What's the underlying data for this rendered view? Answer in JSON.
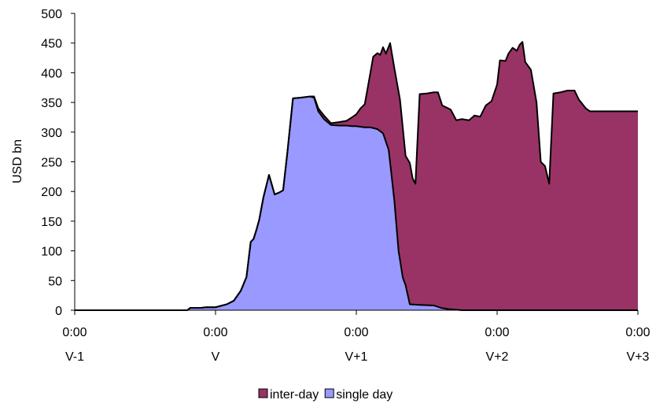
{
  "chart_data": {
    "type": "area",
    "stacked": true,
    "title": "",
    "xlabel": "",
    "ylabel": "USD bn",
    "ylim": [
      0,
      500
    ],
    "yticks": [
      0,
      50,
      100,
      150,
      200,
      250,
      300,
      350,
      400,
      450,
      500
    ],
    "xlim": [
      0,
      4
    ],
    "xticks": [
      {
        "x": 0,
        "time": "0:00",
        "day": "V-1"
      },
      {
        "x": 1,
        "time": "0:00",
        "day": "V"
      },
      {
        "x": 2,
        "time": "0:00",
        "day": "V+1"
      },
      {
        "x": 3,
        "time": "0:00",
        "day": "V+2"
      },
      {
        "x": 4,
        "time": "0:00",
        "day": "V+3"
      }
    ],
    "legend_position": "bottom-center",
    "grid": false,
    "series": [
      {
        "name": "inter-day",
        "color": "#993366",
        "note": "values are cumulative top of stacked area (inter-day + single day)",
        "points": [
          [
            0.0,
            0
          ],
          [
            0.8,
            0
          ],
          [
            0.82,
            4
          ],
          [
            0.9,
            4
          ],
          [
            0.93,
            5
          ],
          [
            1.0,
            5
          ],
          [
            1.08,
            10
          ],
          [
            1.13,
            16
          ],
          [
            1.18,
            33
          ],
          [
            1.22,
            56
          ],
          [
            1.25,
            115
          ],
          [
            1.27,
            120
          ],
          [
            1.29,
            135
          ],
          [
            1.31,
            152
          ],
          [
            1.34,
            190
          ],
          [
            1.38,
            228
          ],
          [
            1.42,
            195
          ],
          [
            1.45,
            198
          ],
          [
            1.48,
            202
          ],
          [
            1.51,
            265
          ],
          [
            1.55,
            357
          ],
          [
            1.6,
            358
          ],
          [
            1.67,
            360
          ],
          [
            1.7,
            360
          ],
          [
            1.73,
            340
          ],
          [
            1.77,
            328
          ],
          [
            1.82,
            315
          ],
          [
            1.88,
            317
          ],
          [
            1.93,
            319
          ],
          [
            1.97,
            325
          ],
          [
            2.0,
            330
          ],
          [
            2.03,
            340
          ],
          [
            2.06,
            347
          ],
          [
            2.1,
            400
          ],
          [
            2.12,
            427
          ],
          [
            2.15,
            433
          ],
          [
            2.17,
            430
          ],
          [
            2.19,
            443
          ],
          [
            2.21,
            432
          ],
          [
            2.24,
            450
          ],
          [
            2.27,
            408
          ],
          [
            2.31,
            355
          ],
          [
            2.35,
            260
          ],
          [
            2.38,
            248
          ],
          [
            2.4,
            222
          ],
          [
            2.42,
            213
          ],
          [
            2.45,
            364
          ],
          [
            2.5,
            365
          ],
          [
            2.55,
            367
          ],
          [
            2.58,
            367
          ],
          [
            2.61,
            345
          ],
          [
            2.67,
            338
          ],
          [
            2.71,
            320
          ],
          [
            2.75,
            322
          ],
          [
            2.8,
            320
          ],
          [
            2.84,
            328
          ],
          [
            2.88,
            326
          ],
          [
            2.92,
            345
          ],
          [
            2.96,
            352
          ],
          [
            3.0,
            380
          ],
          [
            3.02,
            421
          ],
          [
            3.06,
            420
          ],
          [
            3.08,
            432
          ],
          [
            3.11,
            442
          ],
          [
            3.14,
            437
          ],
          [
            3.16,
            447
          ],
          [
            3.18,
            452
          ],
          [
            3.2,
            418
          ],
          [
            3.24,
            405
          ],
          [
            3.28,
            350
          ],
          [
            3.31,
            250
          ],
          [
            3.34,
            243
          ],
          [
            3.37,
            213
          ],
          [
            3.4,
            365
          ],
          [
            3.45,
            367
          ],
          [
            3.5,
            370
          ],
          [
            3.55,
            370
          ],
          [
            3.58,
            355
          ],
          [
            3.63,
            340
          ],
          [
            3.66,
            335
          ],
          [
            4.0,
            335
          ]
        ]
      },
      {
        "name": "single day",
        "color": "#9999FF",
        "points": [
          [
            0.0,
            0
          ],
          [
            0.8,
            0
          ],
          [
            0.82,
            4
          ],
          [
            0.9,
            4
          ],
          [
            0.93,
            5
          ],
          [
            1.0,
            5
          ],
          [
            1.08,
            10
          ],
          [
            1.13,
            16
          ],
          [
            1.18,
            33
          ],
          [
            1.22,
            56
          ],
          [
            1.25,
            115
          ],
          [
            1.27,
            120
          ],
          [
            1.29,
            135
          ],
          [
            1.31,
            152
          ],
          [
            1.34,
            190
          ],
          [
            1.38,
            228
          ],
          [
            1.42,
            195
          ],
          [
            1.45,
            198
          ],
          [
            1.48,
            202
          ],
          [
            1.51,
            265
          ],
          [
            1.55,
            357
          ],
          [
            1.6,
            358
          ],
          [
            1.67,
            360
          ],
          [
            1.7,
            358
          ],
          [
            1.73,
            335
          ],
          [
            1.77,
            322
          ],
          [
            1.82,
            312
          ],
          [
            1.88,
            311
          ],
          [
            1.93,
            311
          ],
          [
            1.97,
            310
          ],
          [
            2.0,
            310
          ],
          [
            2.03,
            309
          ],
          [
            2.06,
            308
          ],
          [
            2.1,
            308
          ],
          [
            2.15,
            305
          ],
          [
            2.19,
            298
          ],
          [
            2.23,
            270
          ],
          [
            2.27,
            185
          ],
          [
            2.3,
            100
          ],
          [
            2.33,
            55
          ],
          [
            2.35,
            42
          ],
          [
            2.38,
            10
          ],
          [
            2.45,
            9
          ],
          [
            2.55,
            8
          ],
          [
            2.6,
            4
          ],
          [
            2.65,
            2
          ],
          [
            2.7,
            1
          ],
          [
            2.75,
            0
          ],
          [
            4.0,
            0
          ]
        ]
      }
    ]
  }
}
